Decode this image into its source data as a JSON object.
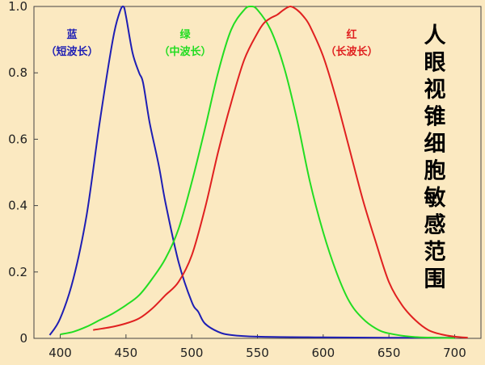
{
  "chart_data": {
    "type": "line",
    "title": "人眼视锥细胞敏感范围",
    "xlabel": "",
    "ylabel": "",
    "xlim": [
      380,
      720
    ],
    "ylim": [
      0,
      1.0
    ],
    "grid": false,
    "x_ticks": [
      400,
      450,
      500,
      550,
      600,
      650,
      700
    ],
    "x_tick_labels": [
      "400",
      "450",
      "500",
      "550",
      "600",
      "650",
      "700"
    ],
    "y_ticks": [
      0,
      0.2,
      0.4,
      0.6,
      0.8,
      1.0
    ],
    "y_tick_labels": [
      "0",
      "0.2",
      "0.4",
      "0.6",
      "0.8",
      "1.0"
    ],
    "series": [
      {
        "key": "blue",
        "name_line1": "蓝",
        "name_line2": "（短波长）",
        "color": "#1e1eb4",
        "points": [
          [
            392,
            0.01
          ],
          [
            400,
            0.06
          ],
          [
            410,
            0.18
          ],
          [
            420,
            0.37
          ],
          [
            430,
            0.65
          ],
          [
            440,
            0.9
          ],
          [
            445,
            0.98
          ],
          [
            448,
            1.0
          ],
          [
            450,
            0.97
          ],
          [
            455,
            0.86
          ],
          [
            460,
            0.8
          ],
          [
            463,
            0.77
          ],
          [
            468,
            0.65
          ],
          [
            475,
            0.52
          ],
          [
            480,
            0.41
          ],
          [
            490,
            0.23
          ],
          [
            500,
            0.11
          ],
          [
            505,
            0.08
          ],
          [
            510,
            0.045
          ],
          [
            520,
            0.02
          ],
          [
            530,
            0.01
          ],
          [
            550,
            0.005
          ],
          [
            600,
            0.003
          ],
          [
            650,
            0.002
          ],
          [
            700,
            0.002
          ]
        ]
      },
      {
        "key": "green",
        "name_line1": "绿",
        "name_line2": "（中波长）",
        "color": "#22dd22",
        "points": [
          [
            400,
            0.012
          ],
          [
            410,
            0.02
          ],
          [
            420,
            0.035
          ],
          [
            430,
            0.055
          ],
          [
            440,
            0.075
          ],
          [
            450,
            0.1
          ],
          [
            460,
            0.13
          ],
          [
            470,
            0.18
          ],
          [
            480,
            0.24
          ],
          [
            490,
            0.33
          ],
          [
            500,
            0.47
          ],
          [
            510,
            0.63
          ],
          [
            520,
            0.8
          ],
          [
            530,
            0.93
          ],
          [
            540,
            0.99
          ],
          [
            545,
            1.0
          ],
          [
            550,
            0.99
          ],
          [
            560,
            0.93
          ],
          [
            570,
            0.82
          ],
          [
            580,
            0.66
          ],
          [
            590,
            0.47
          ],
          [
            600,
            0.32
          ],
          [
            610,
            0.2
          ],
          [
            620,
            0.11
          ],
          [
            630,
            0.06
          ],
          [
            640,
            0.03
          ],
          [
            650,
            0.015
          ],
          [
            670,
            0.004
          ],
          [
            700,
            0.001
          ]
        ]
      },
      {
        "key": "red",
        "name_line1": "红",
        "name_line2": "（长波长）",
        "color": "#e02020",
        "points": [
          [
            425,
            0.025
          ],
          [
            440,
            0.035
          ],
          [
            450,
            0.045
          ],
          [
            460,
            0.06
          ],
          [
            470,
            0.09
          ],
          [
            480,
            0.13
          ],
          [
            490,
            0.17
          ],
          [
            500,
            0.25
          ],
          [
            510,
            0.39
          ],
          [
            520,
            0.56
          ],
          [
            530,
            0.71
          ],
          [
            540,
            0.84
          ],
          [
            550,
            0.92
          ],
          [
            555,
            0.95
          ],
          [
            560,
            0.965
          ],
          [
            565,
            0.975
          ],
          [
            570,
            0.99
          ],
          [
            575,
            1.0
          ],
          [
            580,
            0.99
          ],
          [
            585,
            0.97
          ],
          [
            590,
            0.94
          ],
          [
            600,
            0.85
          ],
          [
            610,
            0.72
          ],
          [
            620,
            0.57
          ],
          [
            630,
            0.42
          ],
          [
            640,
            0.29
          ],
          [
            650,
            0.17
          ],
          [
            660,
            0.1
          ],
          [
            670,
            0.055
          ],
          [
            680,
            0.025
          ],
          [
            690,
            0.012
          ],
          [
            700,
            0.005
          ],
          [
            710,
            0.002
          ]
        ]
      }
    ]
  }
}
